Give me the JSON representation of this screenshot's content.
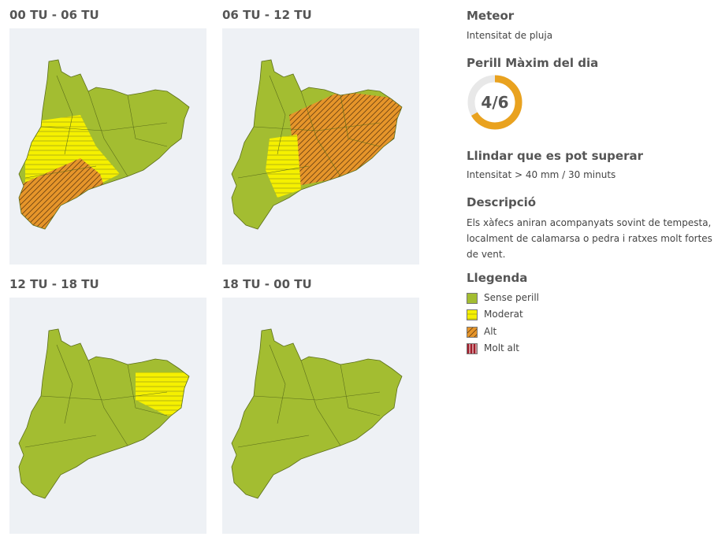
{
  "panels": [
    {
      "title": "00 TU - 06 TU"
    },
    {
      "title": "06 TU - 12 TU"
    },
    {
      "title": "12 TU - 18 TU"
    },
    {
      "title": "18 TU - 00 TU"
    }
  ],
  "sidebar": {
    "meteor": {
      "heading": "Meteor",
      "text": "Intensitat de pluja"
    },
    "max_danger": {
      "heading": "Perill Màxim del dia",
      "gauge_label": "4/6"
    },
    "threshold": {
      "heading": "Llindar que es pot superar",
      "text": "Intensitat > 40 mm / 30 minuts"
    },
    "description": {
      "heading": "Descripció",
      "text": "Els xàfecs aniran acompanyats sovint de tempesta, localment de calamarsa o pedra i ratxes molt fortes de vent."
    },
    "legend": {
      "heading": "Llegenda",
      "items": [
        {
          "label": "Sense perill"
        },
        {
          "label": "Moderat"
        },
        {
          "label": "Alt"
        },
        {
          "label": "Molt alt"
        }
      ]
    }
  }
}
